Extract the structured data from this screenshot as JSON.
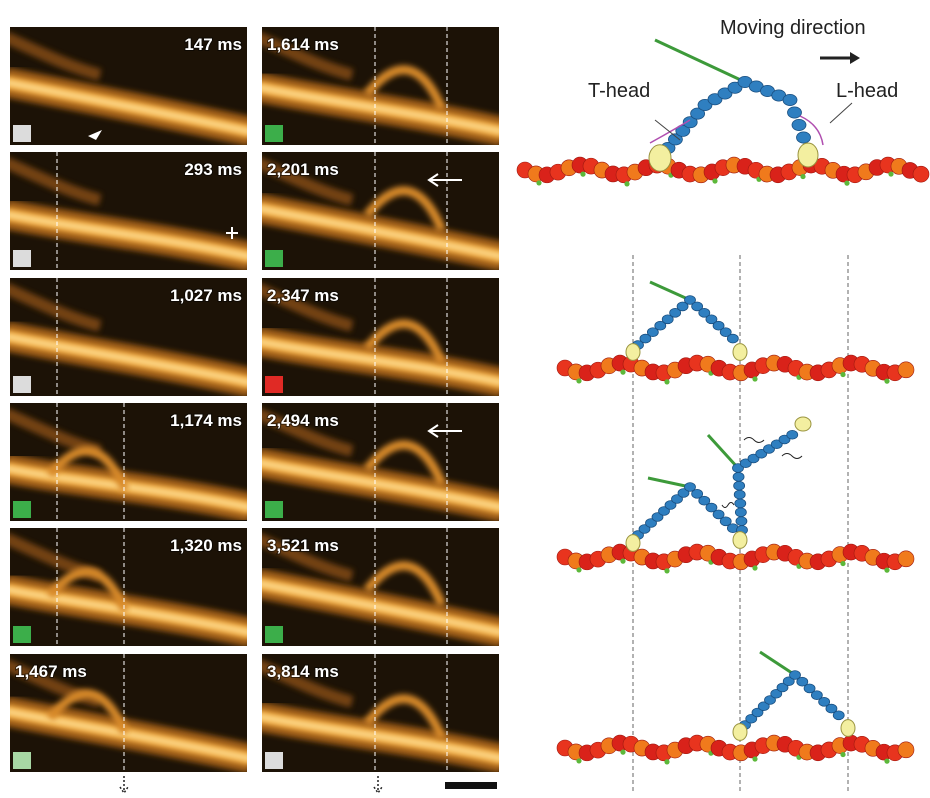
{
  "figure": {
    "frames": [
      {
        "label": "147 ms",
        "indicator": "#dcdcdc"
      },
      {
        "label": "293 ms",
        "indicator": "#dcdcdc"
      },
      {
        "label": "1,027 ms",
        "indicator": "#dcdcdc"
      },
      {
        "label": "1,174 ms",
        "indicator": "#3cae4a"
      },
      {
        "label": "1,320 ms",
        "indicator": "#3cae4a"
      },
      {
        "label": "1,467 ms",
        "indicator": "#a8d8a4"
      },
      {
        "label": "1,614 ms",
        "indicator": "#3cae4a"
      },
      {
        "label": "2,201 ms",
        "indicator": "#3cae4a"
      },
      {
        "label": "2,347 ms",
        "indicator": "#e02a25"
      },
      {
        "label": "2,494 ms",
        "indicator": "#3cae4a"
      },
      {
        "label": "3,521 ms",
        "indicator": "#3cae4a"
      },
      {
        "label": "3,814 ms",
        "indicator": "#dcdcdc"
      }
    ],
    "moving_direction": "Moving direction",
    "t_head": "T-head",
    "l_head": "L-head"
  }
}
